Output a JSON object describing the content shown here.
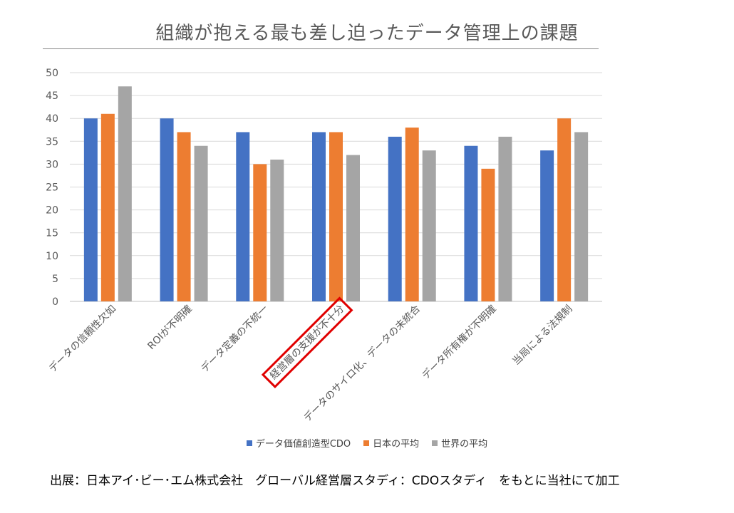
{
  "chart_data": {
    "type": "bar",
    "title": "組織が抱える最も差し迫ったデータ管理上の課題",
    "categories": [
      "データの信頼性欠如",
      "ROIが不明確",
      "データ定義の不統一",
      "経営層の支援が不十分",
      "データのサイロ化、データの未統合",
      "データ所有権が不明確",
      "当局による法規制"
    ],
    "series": [
      {
        "name": "データ価値創造型CDO",
        "color": "#4472C4",
        "values": [
          40,
          40,
          37,
          37,
          36,
          34,
          33
        ]
      },
      {
        "name": "日本の平均",
        "color": "#ED7D31",
        "values": [
          41,
          37,
          30,
          37,
          38,
          29,
          40
        ]
      },
      {
        "name": "世界の平均",
        "color": "#A5A5A5",
        "values": [
          47,
          34,
          31,
          32,
          33,
          36,
          37
        ]
      }
    ],
    "ylim": [
      0,
      50
    ],
    "yticks": [
      0,
      5,
      10,
      15,
      20,
      25,
      30,
      35,
      40,
      45,
      50
    ],
    "grid": true,
    "legend_position": "bottom",
    "highlighted_category": "経営層の支援が不十分",
    "highlight_color": "#E00000"
  },
  "source_note": "出展：日本アイ･ビー･エム株式会社　グローバル経営層スタディ：CDOスタディ　をもとに当社にて加工"
}
